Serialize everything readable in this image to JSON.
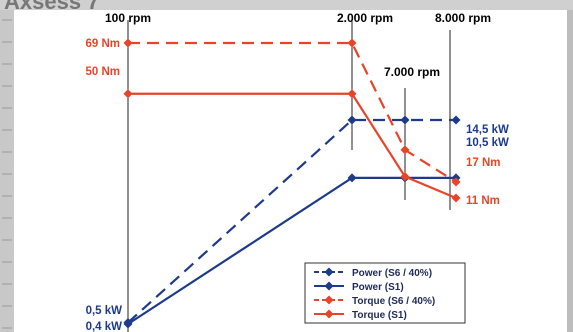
{
  "page": {
    "heading": "Axsess 7"
  },
  "chart_data": {
    "type": "line",
    "x_markers": [
      "100 rpm",
      "2.000 rpm",
      "7.000 rpm",
      "8.000 rpm"
    ],
    "x_rpm": [
      100,
      2000,
      7000,
      8000
    ],
    "series": [
      {
        "name": "Power (S6 / 40%)",
        "unit": "kW",
        "style": "dashed",
        "color": "#1e3a8a",
        "points": [
          [
            100,
            0.5
          ],
          [
            2000,
            14.5
          ],
          [
            7000,
            14.5
          ],
          [
            8000,
            14.5
          ]
        ]
      },
      {
        "name": "Power (S1)",
        "unit": "kW",
        "style": "solid",
        "color": "#1e3a8a",
        "points": [
          [
            100,
            0.4
          ],
          [
            2000,
            10.5
          ],
          [
            7000,
            10.5
          ],
          [
            8000,
            10.5
          ]
        ]
      },
      {
        "name": "Torque (S6 / 40%)",
        "unit": "Nm",
        "style": "dashed",
        "color": "#e8442a",
        "points": [
          [
            100,
            69
          ],
          [
            2000,
            69
          ],
          [
            7000,
            29
          ],
          [
            8000,
            17
          ]
        ]
      },
      {
        "name": "Torque (S1)",
        "unit": "Nm",
        "style": "solid",
        "color": "#e8442a",
        "points": [
          [
            100,
            50
          ],
          [
            2000,
            50
          ],
          [
            7000,
            19
          ],
          [
            8000,
            11
          ]
        ]
      }
    ],
    "torque_labels": {
      "start_s6": "69 Nm",
      "start_s1": "50 Nm",
      "end_s6": "17 Nm",
      "end_s1": "11 Nm"
    },
    "power_labels": {
      "start_s6": "0,5 kW",
      "start_s1": "0,4 kW",
      "end_s6": "14,5 kW",
      "end_s1": "10,5 kW"
    },
    "legend": {
      "placement": "bottom-right",
      "entries": [
        "Power (S6 / 40%)",
        "Power (S1)",
        "Torque (S6 / 40%)",
        "Torque (S1)"
      ]
    },
    "colors": {
      "power": "#1e3a8a",
      "torque": "#e8442a"
    }
  }
}
